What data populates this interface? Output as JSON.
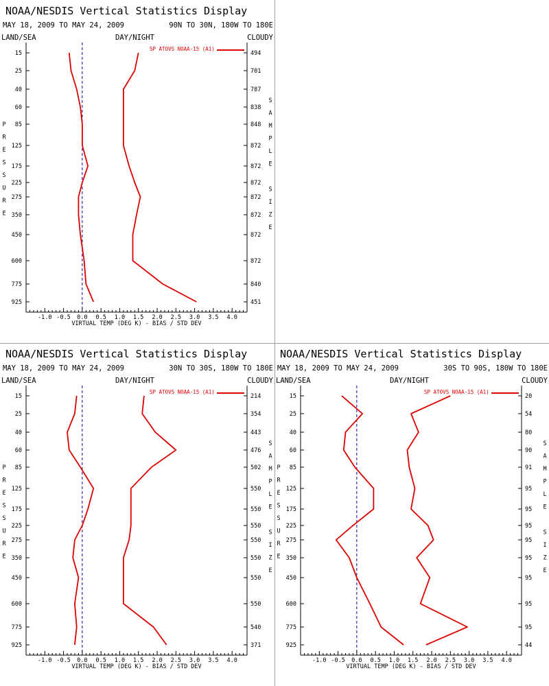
{
  "page": {
    "title": "NOAA/NESDIS Vertical Statistics Display",
    "date_range": "MAY 18, 2009 TO MAY 24, 2009",
    "left_header": "LAND/SEA",
    "center_header": "DAY/NIGHT",
    "right_header": "CLOUDY",
    "y_axis_label": "PRESSURE",
    "right_axis_label": "SAMPLE SIZE",
    "x_axis_label": "VIRTUAL TEMP (DEG K) - BIAS / STD DEV",
    "legend_label": "SP ATOVS NOAA-15 (A1)",
    "colors": {
      "series": "#dd0000",
      "zero_line": "#0000aa",
      "axis": "#000000",
      "separator": "#a0a0a0"
    }
  },
  "chart_data": [
    {
      "type": "line",
      "region": "90N TO 30N, 180W TO 180E",
      "x_ticks": [
        "-1.0",
        "-0.5",
        "0.0",
        "0.5",
        "1.0",
        "1.5",
        "2.0",
        "2.5",
        "3.0",
        "3.5",
        "4.0"
      ],
      "xlim": [
        -1.5,
        4.4
      ],
      "pressure_levels": [
        15,
        25,
        40,
        60,
        85,
        125,
        175,
        225,
        275,
        350,
        450,
        600,
        775,
        925
      ],
      "sample_size": [
        "494",
        "701",
        "787",
        "838",
        "848",
        "872",
        "872",
        "872",
        "872",
        "872",
        "872",
        "872",
        "840",
        "451"
      ],
      "series": [
        {
          "name": "SP ATOVS NOAA-15 (A1)",
          "kind": "bias",
          "values": [
            -0.35,
            -0.3,
            -0.15,
            -0.05,
            0.0,
            0.0,
            0.15,
            0.0,
            -0.1,
            -0.1,
            -0.05,
            0.05,
            0.1,
            0.3
          ]
        },
        {
          "name": "SP ATOVS NOAA-15 (A1)",
          "kind": "std_dev",
          "values": [
            1.5,
            1.4,
            1.1,
            1.1,
            1.1,
            1.1,
            1.25,
            1.4,
            1.55,
            1.45,
            1.35,
            1.35,
            2.15,
            3.05
          ]
        }
      ]
    },
    {
      "type": "line",
      "region": "30N TO 30S, 180W TO 180E",
      "x_ticks": [
        "-1.0",
        "-0.5",
        "0.0",
        "0.5",
        "1.0",
        "1.5",
        "2.0",
        "2.5",
        "3.0",
        "3.5",
        "4.0"
      ],
      "xlim": [
        -1.5,
        4.4
      ],
      "pressure_levels": [
        15,
        25,
        40,
        60,
        85,
        125,
        175,
        225,
        275,
        350,
        450,
        600,
        775,
        925
      ],
      "sample_size": [
        "214",
        "354",
        "443",
        "476",
        "502",
        "550",
        "550",
        "550",
        "550",
        "550",
        "550",
        "550",
        "540",
        "371"
      ],
      "series": [
        {
          "name": "SP ATOVS NOAA-15 (A1)",
          "kind": "bias",
          "values": [
            -0.15,
            -0.2,
            -0.4,
            -0.35,
            -0.05,
            0.3,
            0.15,
            0.0,
            -0.2,
            -0.25,
            -0.1,
            -0.2,
            -0.15,
            -0.2
          ]
        },
        {
          "name": "SP ATOVS NOAA-15 (A1)",
          "kind": "std_dev",
          "values": [
            1.65,
            1.6,
            1.95,
            2.5,
            1.85,
            1.3,
            1.3,
            1.3,
            1.25,
            1.1,
            1.1,
            1.1,
            1.9,
            2.25
          ]
        }
      ]
    },
    {
      "type": "line",
      "region": "30S TO 90S, 180W TO 180E",
      "x_ticks": [
        "-1.0",
        "-0.5",
        "0.0",
        "0.5",
        "1.0",
        "1.5",
        "2.0",
        "2.5",
        "3.0",
        "3.5",
        "4.0"
      ],
      "xlim": [
        -1.5,
        4.4
      ],
      "pressure_levels": [
        15,
        25,
        40,
        60,
        85,
        125,
        175,
        225,
        275,
        350,
        450,
        600,
        775,
        925
      ],
      "sample_size": [
        "20",
        "54",
        "80",
        "90",
        "91",
        "95",
        "95",
        "95",
        "95",
        "95",
        "95",
        "95",
        "95",
        "44"
      ],
      "series": [
        {
          "name": "SP ATOVS NOAA-15 (A1)",
          "kind": "bias",
          "values": [
            -0.4,
            0.15,
            -0.3,
            -0.35,
            -0.05,
            0.45,
            0.45,
            -0.1,
            -0.55,
            -0.2,
            0.0,
            0.35,
            0.65,
            1.25
          ]
        },
        {
          "name": "SP ATOVS NOAA-15 (A1)",
          "kind": "std_dev",
          "values": [
            2.5,
            1.45,
            1.65,
            1.35,
            1.4,
            1.55,
            1.45,
            1.9,
            2.05,
            1.6,
            1.95,
            1.7,
            2.95,
            1.85
          ]
        }
      ]
    }
  ]
}
